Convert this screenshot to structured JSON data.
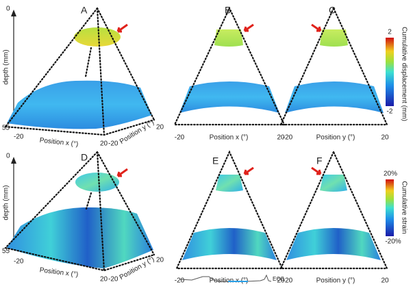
{
  "rows": [
    {
      "panels": [
        {
          "label": "A",
          "depth_label": "depth (mm)",
          "depth_top": "0",
          "depth_bottom": "55",
          "x_min": "-20",
          "x_label": "Position x (°)",
          "x_max": "20",
          "y_min": "-20",
          "y_label": "Position y (°)",
          "y_max": "20"
        },
        {
          "label": "B",
          "x_min": "-20",
          "x_label": "Position x (°)",
          "x_max": "20"
        },
        {
          "label": "C",
          "x_min": "-20",
          "x_label": "Position y (°)",
          "x_max": "20"
        }
      ],
      "colorbar": {
        "max": "2",
        "min": "-2",
        "label": "Cumulative displacement (mm)"
      }
    },
    {
      "panels": [
        {
          "label": "D",
          "depth_label": "depth (mm)",
          "depth_top": "0",
          "depth_bottom": "55",
          "x_min": "-20",
          "x_label": "Position x (°)",
          "x_max": "20",
          "y_min": "-20",
          "y_label": "Position y (°)",
          "y_max": "20"
        },
        {
          "label": "E",
          "x_min": "-20",
          "x_label": "Position x (°)",
          "x_max": "20"
        },
        {
          "label": "F",
          "x_min": "-20",
          "x_label": "Position y (°)",
          "x_max": "20"
        }
      ],
      "colorbar": {
        "max": "20%",
        "min": "-20%",
        "label": "Cumulative strain"
      }
    }
  ],
  "ecg_label": "ECG"
}
